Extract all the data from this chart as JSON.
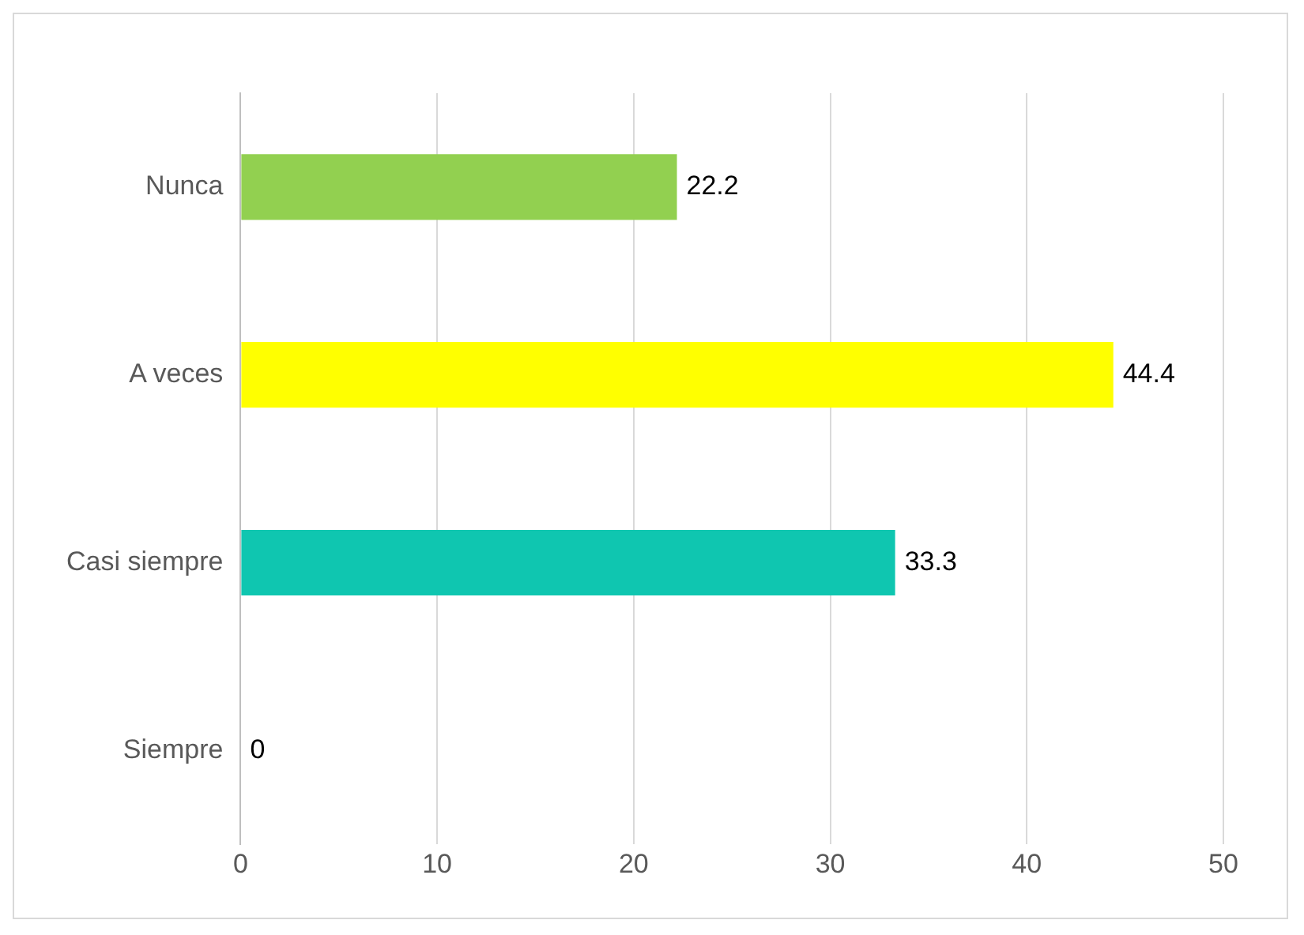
{
  "chart_data": {
    "type": "bar",
    "orientation": "horizontal",
    "categories": [
      "Nunca",
      "A veces",
      "Casi siempre",
      "Siempre"
    ],
    "values": [
      22.2,
      44.4,
      33.3,
      0
    ],
    "colors": [
      "#92d050",
      "#ffff00",
      "#0fc6b0",
      "#5a8a2e"
    ],
    "xlim": [
      0,
      50
    ],
    "xticks": [
      0,
      10,
      20,
      30,
      40,
      50
    ],
    "grid": "x",
    "data_labels": true,
    "legend": false
  }
}
